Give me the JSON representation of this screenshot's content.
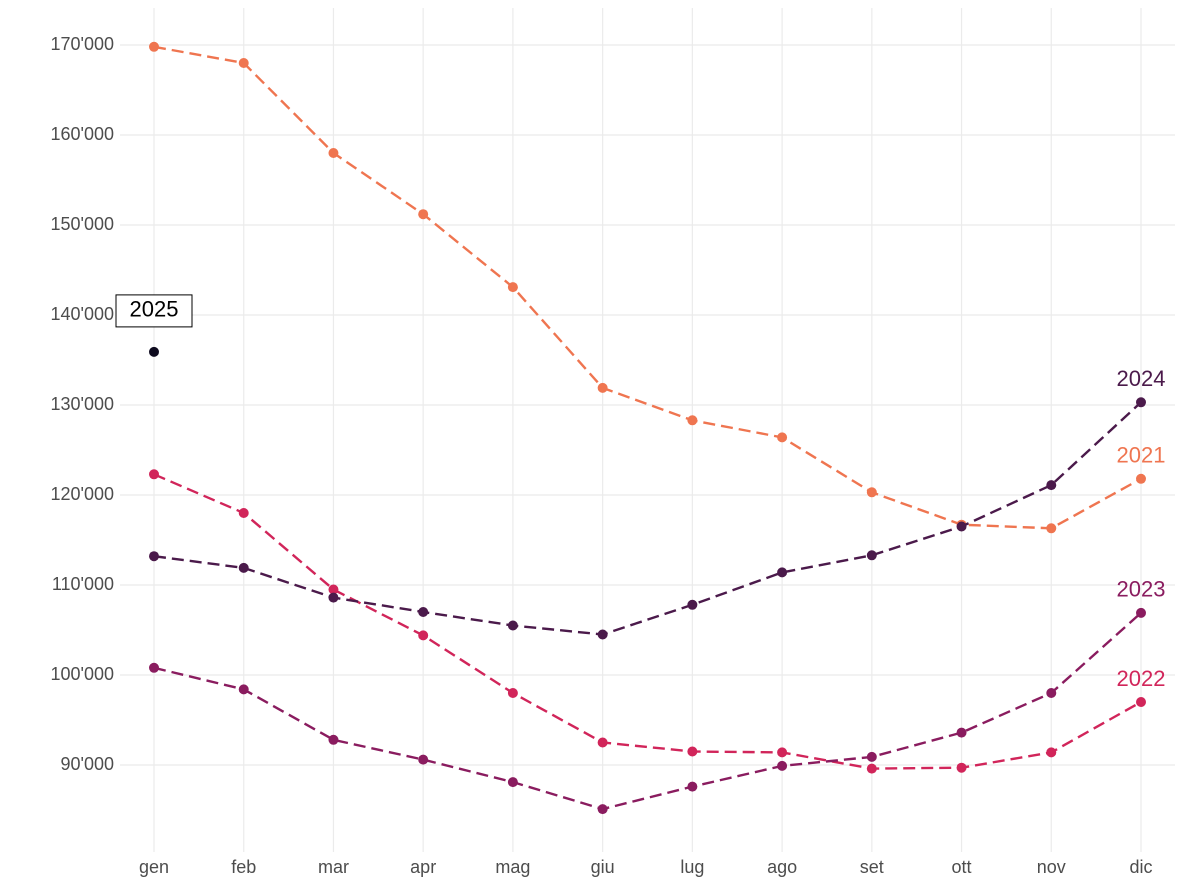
{
  "chart_data": {
    "type": "line",
    "categories": [
      "gen",
      "feb",
      "mar",
      "apr",
      "mag",
      "giu",
      "lug",
      "ago",
      "set",
      "ott",
      "nov",
      "dic"
    ],
    "ylim": [
      81500,
      171500
    ],
    "yticks": [
      {
        "value": 90000,
        "label": "90'000"
      },
      {
        "value": 100000,
        "label": "100'000"
      },
      {
        "value": 110000,
        "label": "110'000"
      },
      {
        "value": 120000,
        "label": "120'000"
      },
      {
        "value": 130000,
        "label": "130'000"
      },
      {
        "value": 140000,
        "label": "140'000"
      },
      {
        "value": 150000,
        "label": "150'000"
      },
      {
        "value": 160000,
        "label": "160'000"
      },
      {
        "value": 170000,
        "label": "170'000"
      }
    ],
    "grid": true,
    "series": [
      {
        "name": "2021",
        "color": "#ef7550",
        "values": [
          169800,
          168000,
          158000,
          151200,
          143100,
          131900,
          128300,
          126400,
          120300,
          116700,
          116300,
          121800
        ]
      },
      {
        "name": "2022",
        "color": "#d1255a",
        "values": [
          122300,
          118000,
          109500,
          104400,
          98000,
          92500,
          91500,
          91400,
          89600,
          89700,
          91400,
          97000
        ]
      },
      {
        "name": "2023",
        "color": "#8a1c5f",
        "values": [
          100800,
          98400,
          92800,
          90600,
          88100,
          85100,
          87600,
          89900,
          90900,
          93600,
          98000,
          106900
        ]
      },
      {
        "name": "2024",
        "color": "#4b1a4b",
        "values": [
          113200,
          111900,
          108600,
          107000,
          105500,
          104500,
          107800,
          111400,
          113300,
          116500,
          121100,
          130300
        ]
      },
      {
        "name": "2025",
        "color": "#0d0a1e",
        "values": [
          135900,
          null,
          null,
          null,
          null,
          null,
          null,
          null,
          null,
          null,
          null,
          null
        ]
      }
    ]
  }
}
